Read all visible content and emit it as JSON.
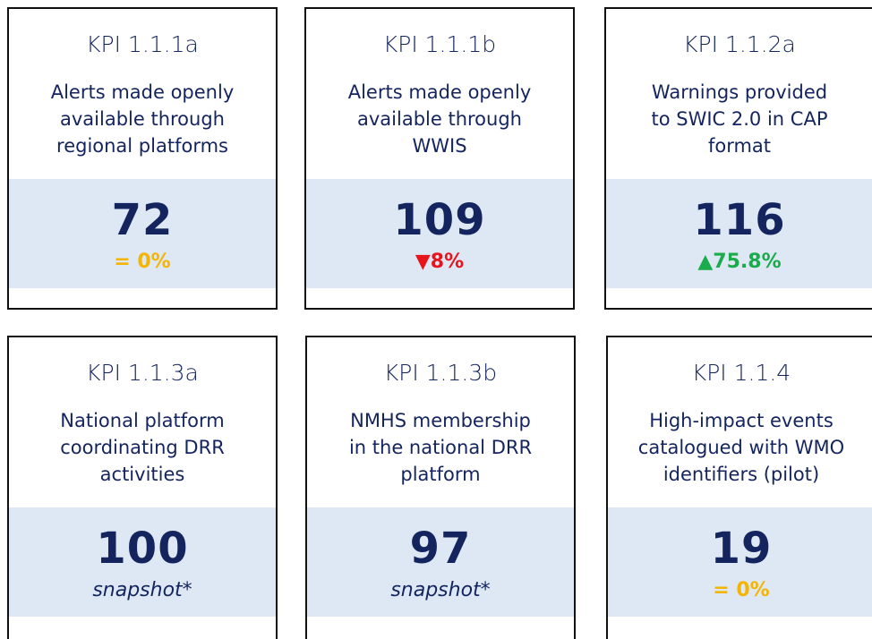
{
  "cards": [
    {
      "kpi": "KPI 1.1.1a",
      "description": [
        "Alerts made openly",
        "available through",
        "regional platforms"
      ],
      "value": 72,
      "change": "= 0%",
      "change_color": "#f5b400",
      "change_italic": false
    },
    {
      "kpi": "KPI 1.1.1b",
      "description": [
        "Alerts made openly",
        "available through",
        "WWIS"
      ],
      "value": 109,
      "change": "▼8%",
      "change_color": "#e8141c",
      "change_italic": false
    },
    {
      "kpi": "KPI 1.1.2a",
      "description": [
        "Warnings provided",
        "to SWIC 2.0 in CAP",
        "format"
      ],
      "value": 116,
      "change": "▲75.8%",
      "change_color": "#1aab4a",
      "change_italic": false
    },
    {
      "kpi": "KPI 1.1.3a",
      "description": [
        "National platform",
        "coordinating DRR",
        "activities"
      ],
      "value": 100,
      "change": "snapshot*",
      "change_color": "#14245e",
      "change_italic": true
    },
    {
      "kpi": "KPI 1.1.3b",
      "description": [
        "NMHS membership",
        "in the national DRR",
        "platform"
      ],
      "value": 97,
      "change": "snapshot*",
      "change_color": "#14245e",
      "change_italic": true
    },
    {
      "kpi": "KPI 1.1.4",
      "description": [
        "High-impact events",
        "catalogued with WMO",
        "identifiers (pilot)"
      ],
      "value": 19,
      "change": "= 0%",
      "change_color": "#f5b400",
      "change_italic": false
    }
  ]
}
